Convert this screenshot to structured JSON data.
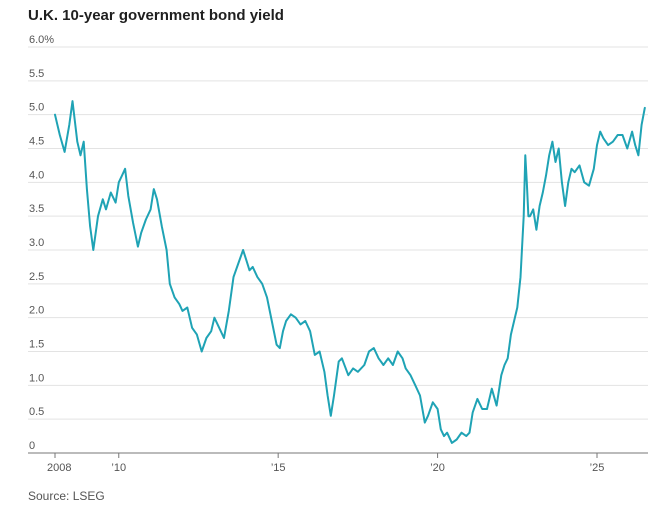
{
  "title": "U.K. 10-year government bond yield",
  "source": "Source: LSEG",
  "colors": {
    "line": "#1fa3b5",
    "grid": "#e3e3e3",
    "axis": "#777777",
    "text": "#555555"
  },
  "chart_data": {
    "type": "line",
    "title": "U.K. 10-year government bond yield",
    "xlabel": "",
    "ylabel": "",
    "xlim": [
      2008.0,
      2026.6
    ],
    "ylim": [
      0,
      6.0
    ],
    "yticks": [
      0,
      0.5,
      1.0,
      1.5,
      2.0,
      2.5,
      3.0,
      3.5,
      4.0,
      4.5,
      5.0,
      5.5,
      6.0
    ],
    "ytick_labels": [
      "0",
      "0.5",
      "1.0",
      "1.5",
      "2.0",
      "2.5",
      "3.0",
      "3.5",
      "4.0",
      "4.5",
      "5.0",
      "5.5",
      "6.0%"
    ],
    "xticks": [
      2008,
      2010,
      2015,
      2020,
      2025
    ],
    "xtick_labels": [
      "2008",
      "’10",
      "’15",
      "’20",
      "’25"
    ],
    "grid": true,
    "series": [
      {
        "x": [
          2008.0,
          2008.15,
          2008.3,
          2008.45,
          2008.55,
          2008.7,
          2008.8,
          2008.9,
          2009.0,
          2009.1,
          2009.2,
          2009.35,
          2009.5,
          2009.6,
          2009.75,
          2009.9,
          2010.0,
          2010.1,
          2010.2,
          2010.3,
          2010.45,
          2010.6,
          2010.7,
          2010.85,
          2011.0,
          2011.1,
          2011.2,
          2011.35,
          2011.5,
          2011.6,
          2011.75,
          2011.9,
          2012.0,
          2012.15,
          2012.3,
          2012.45,
          2012.6,
          2012.75,
          2012.9,
          2013.0,
          2013.15,
          2013.3,
          2013.45,
          2013.6,
          2013.75,
          2013.9,
          2014.0,
          2014.1,
          2014.2,
          2014.35,
          2014.5,
          2014.65,
          2014.8,
          2014.95,
          2015.05,
          2015.15,
          2015.25,
          2015.4,
          2015.55,
          2015.7,
          2015.85,
          2016.0,
          2016.15,
          2016.3,
          2016.45,
          2016.55,
          2016.65,
          2016.75,
          2016.9,
          2017.0,
          2017.2,
          2017.35,
          2017.5,
          2017.7,
          2017.85,
          2018.0,
          2018.15,
          2018.3,
          2018.45,
          2018.6,
          2018.75,
          2018.9,
          2019.0,
          2019.15,
          2019.3,
          2019.45,
          2019.6,
          2019.7,
          2019.85,
          2020.0,
          2020.1,
          2020.2,
          2020.3,
          2020.45,
          2020.6,
          2020.75,
          2020.9,
          2021.0,
          2021.1,
          2021.25,
          2021.4,
          2021.55,
          2021.7,
          2021.85,
          2022.0,
          2022.1,
          2022.2,
          2022.3,
          2022.4,
          2022.5,
          2022.6,
          2022.7,
          2022.75,
          2022.8,
          2022.85,
          2022.9,
          2023.0,
          2023.1,
          2023.2,
          2023.3,
          2023.4,
          2023.5,
          2023.6,
          2023.7,
          2023.8,
          2023.9,
          2024.0,
          2024.1,
          2024.2,
          2024.3,
          2024.45,
          2024.6,
          2024.75,
          2024.9,
          2025.0,
          2025.1,
          2025.2,
          2025.35,
          2025.5,
          2025.65,
          2025.8,
          2025.95,
          2026.1,
          2026.2,
          2026.3,
          2026.4,
          2026.5
        ],
        "y": [
          5.0,
          4.7,
          4.45,
          4.85,
          5.2,
          4.6,
          4.4,
          4.6,
          3.9,
          3.35,
          3.0,
          3.5,
          3.75,
          3.6,
          3.85,
          3.7,
          4.0,
          4.1,
          4.2,
          3.8,
          3.4,
          3.05,
          3.25,
          3.45,
          3.6,
          3.9,
          3.75,
          3.35,
          3.0,
          2.5,
          2.3,
          2.2,
          2.1,
          2.15,
          1.85,
          1.75,
          1.5,
          1.7,
          1.8,
          2.0,
          1.85,
          1.7,
          2.1,
          2.6,
          2.8,
          3.0,
          2.85,
          2.7,
          2.75,
          2.6,
          2.5,
          2.3,
          1.95,
          1.6,
          1.55,
          1.8,
          1.95,
          2.05,
          2.0,
          1.9,
          1.95,
          1.8,
          1.45,
          1.5,
          1.2,
          0.85,
          0.55,
          0.85,
          1.35,
          1.4,
          1.15,
          1.25,
          1.2,
          1.3,
          1.5,
          1.55,
          1.4,
          1.3,
          1.4,
          1.3,
          1.5,
          1.4,
          1.25,
          1.15,
          1.0,
          0.85,
          0.45,
          0.55,
          0.75,
          0.65,
          0.35,
          0.25,
          0.3,
          0.15,
          0.2,
          0.3,
          0.25,
          0.3,
          0.6,
          0.8,
          0.65,
          0.65,
          0.95,
          0.7,
          1.15,
          1.3,
          1.4,
          1.75,
          1.95,
          2.15,
          2.6,
          3.5,
          4.4,
          4.0,
          3.5,
          3.5,
          3.6,
          3.3,
          3.65,
          3.85,
          4.1,
          4.4,
          4.6,
          4.3,
          4.5,
          4.0,
          3.65,
          4.0,
          4.2,
          4.15,
          4.25,
          4.0,
          3.95,
          4.2,
          4.55,
          4.75,
          4.65,
          4.55,
          4.6,
          4.7,
          4.7,
          4.5,
          4.75,
          4.55,
          4.4,
          4.85,
          5.1
        ]
      }
    ]
  }
}
